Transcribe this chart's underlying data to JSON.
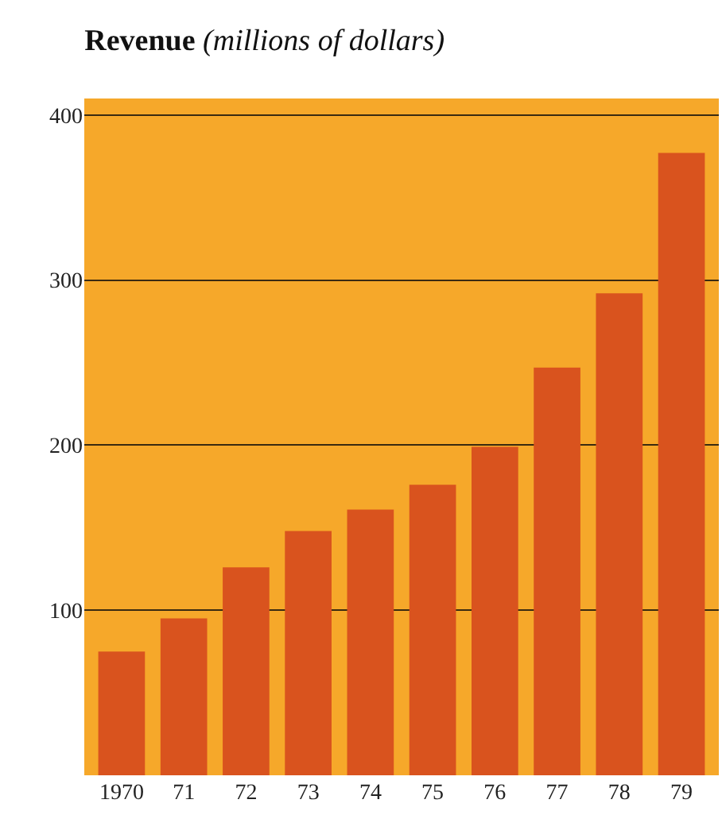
{
  "chart_data": {
    "type": "bar",
    "title": "Revenue",
    "subtitle": "(millions of dollars)",
    "categories": [
      "1970",
      "71",
      "72",
      "73",
      "74",
      "75",
      "76",
      "77",
      "78",
      "79"
    ],
    "values": [
      75,
      95,
      126,
      148,
      161,
      176,
      199,
      247,
      292,
      377
    ],
    "color": "#d9531e",
    "ylim": [
      0,
      410
    ],
    "yticks": [
      100,
      200,
      300,
      400
    ],
    "grid": "y"
  }
}
